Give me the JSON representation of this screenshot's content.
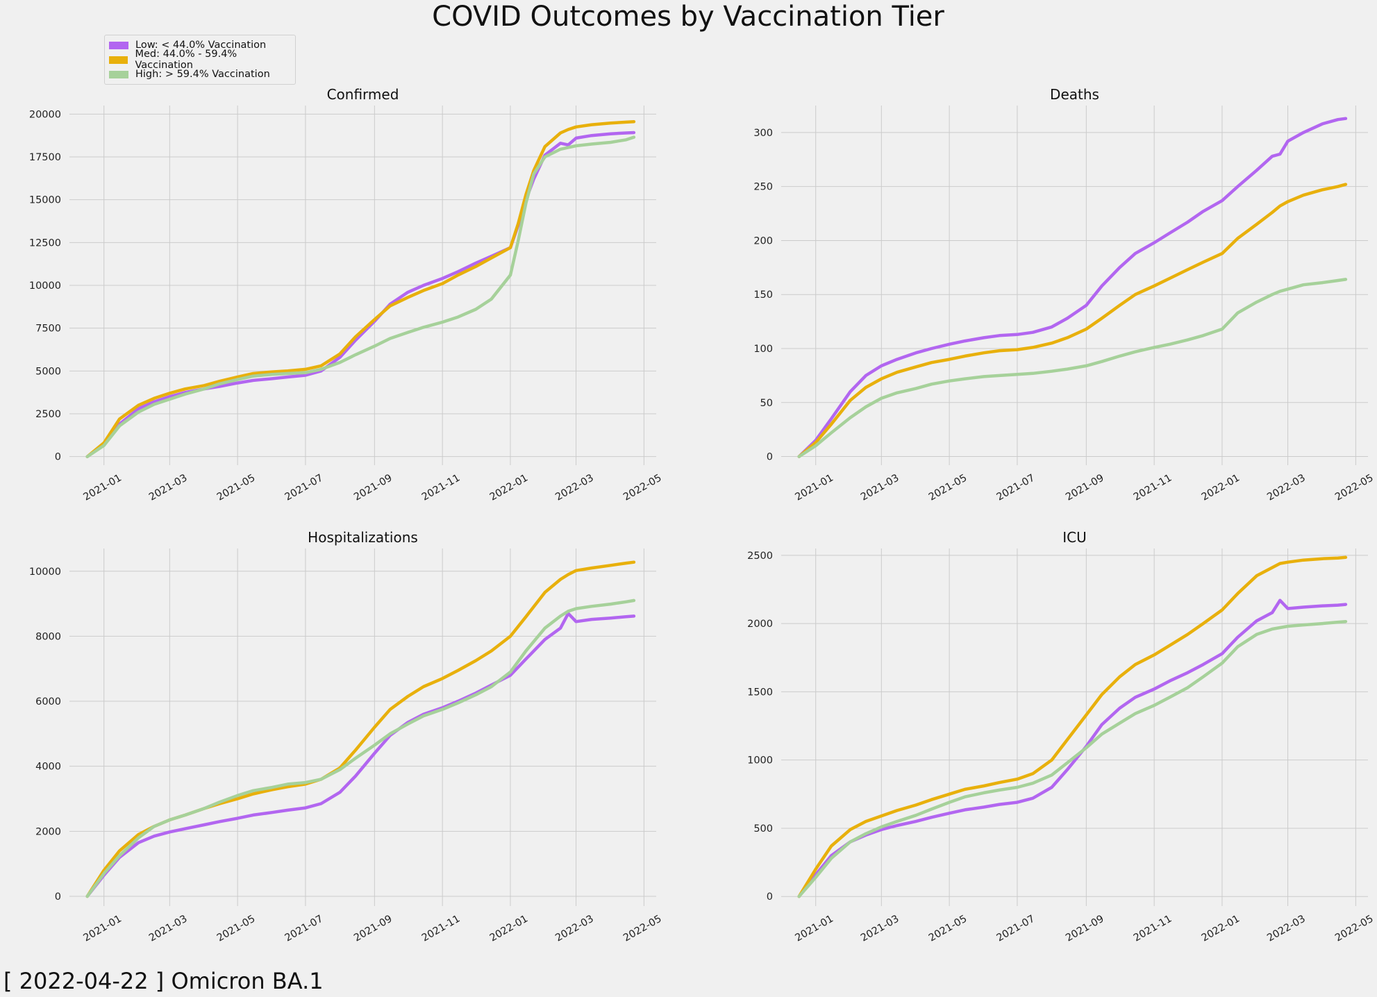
{
  "title": "COVID Outcomes by Vaccination Tier",
  "footer": "[ 2022-04-22 ] Omicron BA.1",
  "legend": [
    {
      "label": "Low: < 44.0% Vaccination",
      "color": "#b266f0"
    },
    {
      "label": "Med: 44.0% - 59.4% Vaccination",
      "color": "#e8b00c"
    },
    {
      "label": "High: > 59.4%  Vaccination",
      "color": "#a6d19a"
    }
  ],
  "chart_data": [
    {
      "type": "line",
      "title": "Confirmed",
      "x": [
        "2020-12-17",
        "2021-01-01",
        "2021-01-15",
        "2021-02-01",
        "2021-02-15",
        "2021-03-01",
        "2021-03-15",
        "2021-04-01",
        "2021-04-15",
        "2021-05-01",
        "2021-05-15",
        "2021-06-01",
        "2021-06-15",
        "2021-07-01",
        "2021-07-15",
        "2021-08-01",
        "2021-08-15",
        "2021-09-01",
        "2021-09-15",
        "2021-10-01",
        "2021-10-15",
        "2021-11-01",
        "2021-11-15",
        "2021-12-01",
        "2021-12-15",
        "2022-01-01",
        "2022-01-08",
        "2022-01-15",
        "2022-01-22",
        "2022-02-01",
        "2022-02-15",
        "2022-02-22",
        "2022-03-01",
        "2022-03-15",
        "2022-04-01",
        "2022-04-15",
        "2022-04-22"
      ],
      "xticks": [
        "2021-01",
        "2021-03",
        "2021-05",
        "2021-07",
        "2021-09",
        "2021-11",
        "2022-01",
        "2022-03",
        "2022-05"
      ],
      "ylim": [
        -500,
        20500
      ],
      "yticks": [
        0,
        2500,
        5000,
        7500,
        10000,
        12500,
        15000,
        17500,
        20000
      ],
      "series": [
        {
          "name": "Low: < 44.0% Vaccination",
          "values": [
            0,
            700,
            1900,
            2800,
            3200,
            3500,
            3750,
            3950,
            4100,
            4300,
            4450,
            4550,
            4650,
            4750,
            5000,
            5800,
            6800,
            7900,
            8900,
            9600,
            10000,
            10400,
            10800,
            11300,
            11700,
            12200,
            13500,
            15000,
            16200,
            17600,
            18300,
            18200,
            18600,
            18750,
            18850,
            18900,
            18920
          ]
        },
        {
          "name": "Med: 44.0% - 59.4% Vaccination",
          "values": [
            0,
            800,
            2200,
            3000,
            3400,
            3700,
            3950,
            4150,
            4400,
            4650,
            4850,
            4950,
            5000,
            5100,
            5300,
            6000,
            7000,
            8000,
            8800,
            9300,
            9700,
            10100,
            10600,
            11100,
            11600,
            12200,
            13600,
            15300,
            16700,
            18100,
            18900,
            19100,
            19250,
            19380,
            19480,
            19530,
            19560
          ]
        },
        {
          "name": "High: > 59.4%  Vaccination",
          "values": [
            0,
            650,
            1800,
            2600,
            3050,
            3350,
            3650,
            3950,
            4250,
            4500,
            4700,
            4800,
            4850,
            4900,
            5100,
            5500,
            5950,
            6450,
            6900,
            7250,
            7550,
            7850,
            8150,
            8600,
            9200,
            10600,
            12600,
            14800,
            16500,
            17500,
            17950,
            18050,
            18150,
            18250,
            18350,
            18500,
            18650
          ]
        }
      ]
    },
    {
      "type": "line",
      "title": "Deaths",
      "x": [
        "2020-12-17",
        "2021-01-01",
        "2021-01-15",
        "2021-02-01",
        "2021-02-15",
        "2021-03-01",
        "2021-03-15",
        "2021-04-01",
        "2021-04-15",
        "2021-05-01",
        "2021-05-15",
        "2021-06-01",
        "2021-06-15",
        "2021-07-01",
        "2021-07-15",
        "2021-08-01",
        "2021-08-15",
        "2021-09-01",
        "2021-09-15",
        "2021-10-01",
        "2021-10-15",
        "2021-11-01",
        "2021-11-15",
        "2021-12-01",
        "2021-12-15",
        "2022-01-01",
        "2022-01-15",
        "2022-02-01",
        "2022-02-15",
        "2022-02-22",
        "2022-03-01",
        "2022-03-15",
        "2022-04-01",
        "2022-04-15",
        "2022-04-22"
      ],
      "xticks": [
        "2021-01",
        "2021-03",
        "2021-05",
        "2021-07",
        "2021-09",
        "2021-11",
        "2022-01",
        "2022-03",
        "2022-05"
      ],
      "ylim": [
        -8,
        325
      ],
      "yticks": [
        0,
        50,
        100,
        150,
        200,
        250,
        300
      ],
      "series": [
        {
          "name": "Low: < 44.0% Vaccination",
          "values": [
            0,
            15,
            35,
            60,
            75,
            84,
            90,
            96,
            100,
            104,
            107,
            110,
            112,
            113,
            115,
            120,
            128,
            140,
            158,
            175,
            188,
            198,
            207,
            217,
            227,
            237,
            250,
            265,
            278,
            280,
            292,
            300,
            308,
            312,
            313
          ]
        },
        {
          "name": "Med: 44.0% - 59.4% Vaccination",
          "values": [
            0,
            13,
            30,
            52,
            64,
            72,
            78,
            83,
            87,
            90,
            93,
            96,
            98,
            99,
            101,
            105,
            110,
            118,
            128,
            140,
            150,
            158,
            165,
            173,
            180,
            188,
            202,
            215,
            226,
            232,
            236,
            242,
            247,
            250,
            252
          ]
        },
        {
          "name": "High: > 59.4%  Vaccination",
          "values": [
            0,
            10,
            22,
            36,
            46,
            54,
            59,
            63,
            67,
            70,
            72,
            74,
            75,
            76,
            77,
            79,
            81,
            84,
            88,
            93,
            97,
            101,
            104,
            108,
            112,
            118,
            133,
            143,
            150,
            153,
            155,
            159,
            161,
            163,
            164
          ]
        }
      ]
    },
    {
      "type": "line",
      "title": "Hospitalizations",
      "x": [
        "2020-12-17",
        "2021-01-01",
        "2021-01-15",
        "2021-02-01",
        "2021-02-15",
        "2021-03-01",
        "2021-03-15",
        "2021-04-01",
        "2021-04-15",
        "2021-05-01",
        "2021-05-15",
        "2021-06-01",
        "2021-06-15",
        "2021-07-01",
        "2021-07-15",
        "2021-08-01",
        "2021-08-15",
        "2021-09-01",
        "2021-09-15",
        "2021-10-01",
        "2021-10-15",
        "2021-11-01",
        "2021-11-15",
        "2021-12-01",
        "2021-12-15",
        "2022-01-01",
        "2022-01-15",
        "2022-02-01",
        "2022-02-15",
        "2022-02-22",
        "2022-03-01",
        "2022-03-15",
        "2022-04-01",
        "2022-04-15",
        "2022-04-22"
      ],
      "xticks": [
        "2021-01",
        "2021-03",
        "2021-05",
        "2021-07",
        "2021-09",
        "2021-11",
        "2022-01",
        "2022-03",
        "2022-05"
      ],
      "ylim": [
        -300,
        10700
      ],
      "yticks": [
        0,
        2000,
        4000,
        6000,
        8000,
        10000
      ],
      "series": [
        {
          "name": "Low: < 44.0% Vaccination",
          "values": [
            0,
            650,
            1200,
            1650,
            1850,
            1980,
            2080,
            2200,
            2300,
            2400,
            2500,
            2580,
            2650,
            2720,
            2850,
            3200,
            3700,
            4400,
            4950,
            5350,
            5600,
            5800,
            6000,
            6250,
            6500,
            6800,
            7300,
            7900,
            8250,
            8700,
            8450,
            8520,
            8560,
            8600,
            8620
          ]
        },
        {
          "name": "Med: 44.0% - 59.4% Vaccination",
          "values": [
            0,
            800,
            1400,
            1900,
            2150,
            2350,
            2500,
            2700,
            2850,
            3000,
            3150,
            3280,
            3370,
            3450,
            3600,
            3950,
            4500,
            5200,
            5750,
            6150,
            6450,
            6700,
            6950,
            7250,
            7550,
            8000,
            8600,
            9350,
            9750,
            9900,
            10020,
            10100,
            10180,
            10250,
            10280
          ]
        },
        {
          "name": "High: > 59.4%  Vaccination",
          "values": [
            0,
            700,
            1250,
            1800,
            2150,
            2350,
            2500,
            2700,
            2900,
            3100,
            3250,
            3350,
            3450,
            3500,
            3600,
            3900,
            4250,
            4650,
            5000,
            5300,
            5550,
            5750,
            5950,
            6200,
            6450,
            6900,
            7550,
            8250,
            8620,
            8770,
            8850,
            8920,
            8990,
            9060,
            9100
          ]
        }
      ]
    },
    {
      "type": "line",
      "title": "ICU",
      "x": [
        "2020-12-17",
        "2021-01-01",
        "2021-01-15",
        "2021-02-01",
        "2021-02-15",
        "2021-03-01",
        "2021-03-15",
        "2021-04-01",
        "2021-04-15",
        "2021-05-01",
        "2021-05-15",
        "2021-06-01",
        "2021-06-15",
        "2021-07-01",
        "2021-07-15",
        "2021-08-01",
        "2021-08-15",
        "2021-09-01",
        "2021-09-15",
        "2021-10-01",
        "2021-10-15",
        "2021-11-01",
        "2021-11-15",
        "2021-12-01",
        "2021-12-15",
        "2022-01-01",
        "2022-01-15",
        "2022-02-01",
        "2022-02-15",
        "2022-02-22",
        "2022-03-01",
        "2022-03-15",
        "2022-04-01",
        "2022-04-15",
        "2022-04-22"
      ],
      "xticks": [
        "2021-01",
        "2021-03",
        "2021-05",
        "2021-07",
        "2021-09",
        "2021-11",
        "2022-01",
        "2022-03",
        "2022-05"
      ],
      "ylim": [
        -70,
        2550
      ],
      "yticks": [
        0,
        500,
        1000,
        1500,
        2000,
        2500
      ],
      "series": [
        {
          "name": "Low: < 44.0% Vaccination",
          "values": [
            0,
            160,
            300,
            400,
            450,
            490,
            520,
            550,
            580,
            610,
            635,
            655,
            675,
            690,
            720,
            800,
            930,
            1100,
            1260,
            1380,
            1460,
            1520,
            1580,
            1640,
            1700,
            1780,
            1900,
            2020,
            2080,
            2170,
            2110,
            2120,
            2130,
            2135,
            2140
          ]
        },
        {
          "name": "Med: 44.0% - 59.4% Vaccination",
          "values": [
            0,
            200,
            370,
            490,
            550,
            590,
            630,
            670,
            710,
            750,
            785,
            810,
            835,
            860,
            900,
            1000,
            1150,
            1330,
            1480,
            1610,
            1700,
            1770,
            1840,
            1920,
            2000,
            2100,
            2220,
            2350,
            2410,
            2440,
            2450,
            2465,
            2475,
            2480,
            2485
          ]
        },
        {
          "name": "High: > 59.4%  Vaccination",
          "values": [
            0,
            140,
            280,
            400,
            460,
            510,
            550,
            595,
            640,
            690,
            730,
            760,
            780,
            800,
            830,
            890,
            980,
            1090,
            1190,
            1270,
            1340,
            1400,
            1460,
            1530,
            1610,
            1710,
            1830,
            1920,
            1960,
            1970,
            1980,
            1990,
            2000,
            2010,
            2015
          ]
        }
      ]
    }
  ]
}
